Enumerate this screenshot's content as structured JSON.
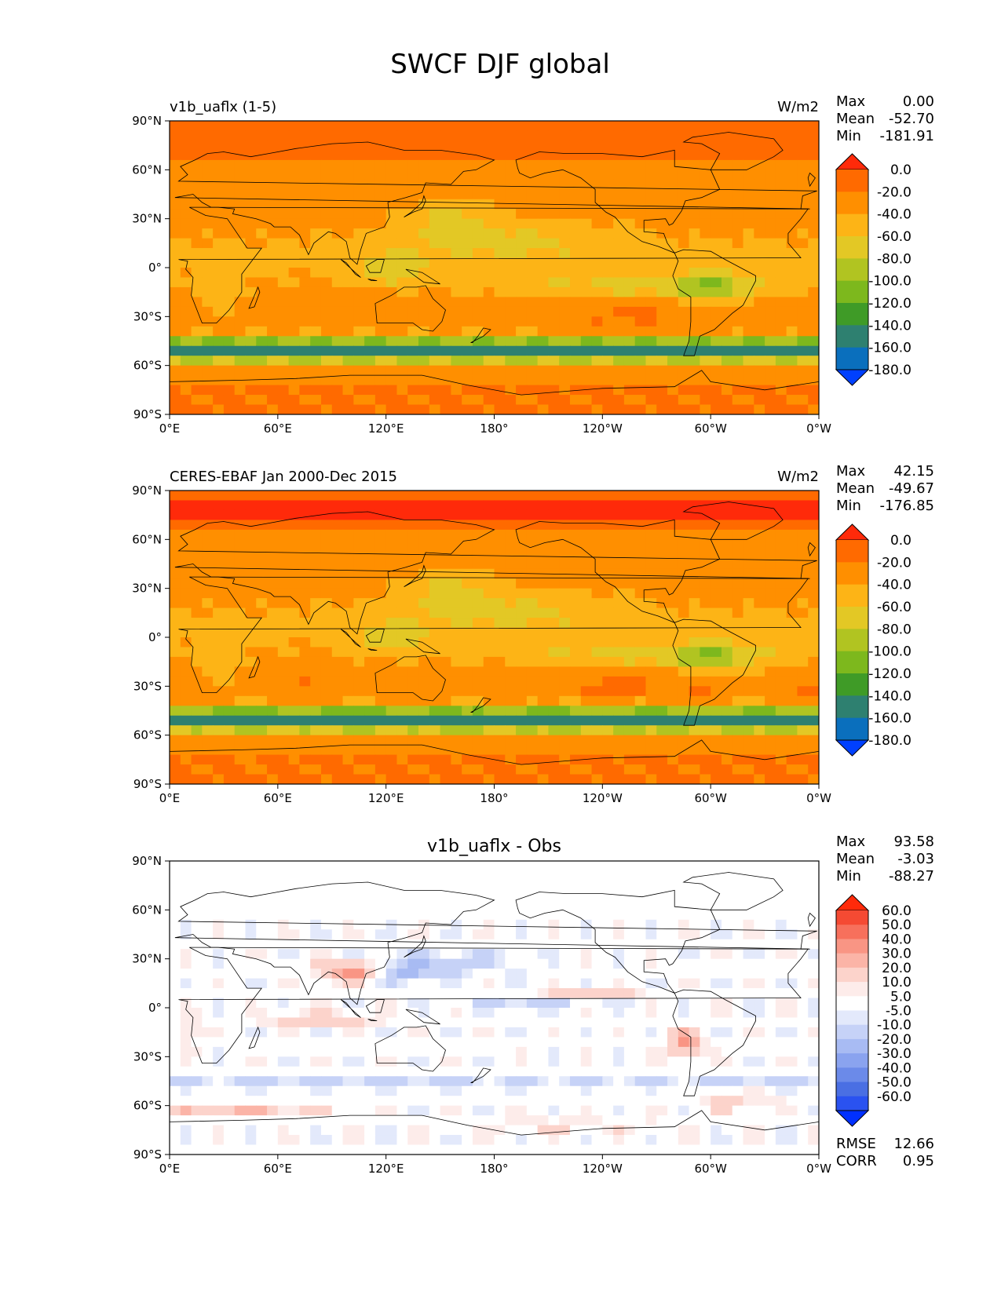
{
  "figure": {
    "title": "SWCF DJF global"
  },
  "chart_data": [
    {
      "type": "heatmap",
      "id": "model",
      "title_left": "v1b_uaflx (1-5)",
      "units": "W/m2",
      "stats": [
        {
          "label": "Max",
          "value": "0.00"
        },
        {
          "label": "Mean",
          "value": "-52.70"
        },
        {
          "label": "Min",
          "value": "-181.91"
        }
      ],
      "colorbar": {
        "ticks": [
          "0.0",
          "-20.0",
          "-40.0",
          "-60.0",
          "-80.0",
          "-100.0",
          "-120.0",
          "-140.0",
          "-160.0",
          "-180.0"
        ],
        "colors": [
          "#ff2a0a",
          "#ff6a00",
          "#ff8f00",
          "#fdb416",
          "#e3c825",
          "#b1c421",
          "#7db81d",
          "#3f9b27",
          "#2e8070",
          "#0a6fbd",
          "#0040ff"
        ]
      },
      "x_ticks": [
        "0°E",
        "60°E",
        "120°E",
        "180°",
        "120°W",
        "60°W",
        "0°W"
      ],
      "y_ticks": [
        "90°N",
        "60°N",
        "30°N",
        "0°",
        "30°S",
        "60°S",
        "90°S"
      ],
      "lon_range": [
        0,
        360
      ],
      "lat_range": [
        -90,
        90
      ]
    },
    {
      "type": "heatmap",
      "id": "obs",
      "title_left": "CERES-EBAF Jan 2000-Dec 2015",
      "units": "W/m2",
      "stats": [
        {
          "label": "Max",
          "value": "42.15"
        },
        {
          "label": "Mean",
          "value": "-49.67"
        },
        {
          "label": "Min",
          "value": "-176.85"
        }
      ],
      "colorbar": {
        "ticks": [
          "0.0",
          "-20.0",
          "-40.0",
          "-60.0",
          "-80.0",
          "-100.0",
          "-120.0",
          "-140.0",
          "-160.0",
          "-180.0"
        ],
        "colors": [
          "#ff2a0a",
          "#ff6a00",
          "#ff8f00",
          "#fdb416",
          "#e3c825",
          "#b1c421",
          "#7db81d",
          "#3f9b27",
          "#2e8070",
          "#0a6fbd",
          "#0040ff"
        ]
      },
      "x_ticks": [
        "0°E",
        "60°E",
        "120°E",
        "180°",
        "120°W",
        "60°W",
        "0°W"
      ],
      "y_ticks": [
        "90°N",
        "60°N",
        "30°N",
        "0°",
        "30°S",
        "60°S",
        "90°S"
      ],
      "lon_range": [
        0,
        360
      ],
      "lat_range": [
        -90,
        90
      ]
    },
    {
      "type": "heatmap",
      "id": "diff",
      "title_center": "v1b_uaflx - Obs",
      "stats": [
        {
          "label": "Max",
          "value": "93.58"
        },
        {
          "label": "Mean",
          "value": "-3.03"
        },
        {
          "label": "Min",
          "value": "-88.27"
        }
      ],
      "extra_stats": [
        {
          "label": "RMSE",
          "value": "12.66"
        },
        {
          "label": "CORR",
          "value": "0.95"
        }
      ],
      "colorbar": {
        "ticks": [
          "60.0",
          "50.0",
          "40.0",
          "30.0",
          "20.0",
          "10.0",
          "5.0",
          "-5.0",
          "-10.0",
          "-20.0",
          "-30.0",
          "-40.0",
          "-50.0",
          "-60.0"
        ],
        "colors": [
          "#ff2a0a",
          "#f54a33",
          "#f7705c",
          "#f99584",
          "#fbb4a7",
          "#fcd3cb",
          "#fdecea",
          "#ffffff",
          "#e3e9fb",
          "#c6d2f7",
          "#a8bbf3",
          "#8aa3ef",
          "#6b8ae9",
          "#4a6fe3",
          "#2a52f0",
          "#0030ff"
        ]
      },
      "x_ticks": [
        "0°E",
        "60°E",
        "120°E",
        "180°",
        "120°W",
        "60°W",
        "0°W"
      ],
      "y_ticks": [
        "90°N",
        "60°N",
        "30°N",
        "0°",
        "30°S",
        "60°S",
        "90°S"
      ],
      "lon_range": [
        0,
        360
      ],
      "lat_range": [
        -90,
        90
      ]
    }
  ]
}
